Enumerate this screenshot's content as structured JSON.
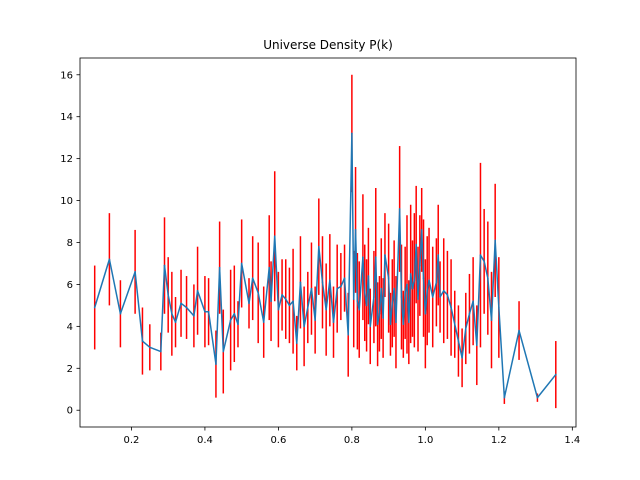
{
  "chart_data": {
    "type": "line",
    "title": "Universe Density P(k)",
    "xlabel": "",
    "ylabel": "",
    "xlim": [
      0.06,
      1.41
    ],
    "ylim": [
      -0.8,
      16.8
    ],
    "xticks": [
      0.2,
      0.4,
      0.6,
      0.8,
      1.0,
      1.2,
      1.4
    ],
    "xtick_labels": [
      "0.2",
      "0.4",
      "0.6",
      "0.8",
      "1.0",
      "1.2",
      "1.4"
    ],
    "yticks": [
      0,
      2,
      4,
      6,
      8,
      10,
      12,
      14,
      16
    ],
    "ytick_labels": [
      "0",
      "2",
      "4",
      "6",
      "8",
      "10",
      "12",
      "14",
      "16"
    ],
    "grid": false,
    "legend": "none",
    "colors": {
      "line": "#1f77b4",
      "errorbar": "#ff0000",
      "frame": "#000000",
      "background": "#ffffff"
    },
    "series": [
      {
        "x": [
          0.1,
          0.14,
          0.17,
          0.21,
          0.23,
          0.25,
          0.28,
          0.29,
          0.3,
          0.31,
          0.32,
          0.335,
          0.35,
          0.37,
          0.38,
          0.4,
          0.41,
          0.43,
          0.44,
          0.45,
          0.47,
          0.48,
          0.49,
          0.5,
          0.52,
          0.53,
          0.545,
          0.56,
          0.575,
          0.58,
          0.59,
          0.6,
          0.61,
          0.62,
          0.63,
          0.64,
          0.65,
          0.66,
          0.67,
          0.68,
          0.69,
          0.7,
          0.71,
          0.72,
          0.73,
          0.74,
          0.75,
          0.76,
          0.77,
          0.78,
          0.79,
          0.8,
          0.805,
          0.81,
          0.815,
          0.82,
          0.83,
          0.835,
          0.84,
          0.845,
          0.85,
          0.86,
          0.865,
          0.87,
          0.875,
          0.88,
          0.885,
          0.89,
          0.9,
          0.905,
          0.91,
          0.915,
          0.92,
          0.93,
          0.935,
          0.94,
          0.945,
          0.95,
          0.955,
          0.96,
          0.965,
          0.97,
          0.975,
          0.98,
          0.985,
          0.99,
          0.995,
          1.0,
          1.005,
          1.01,
          1.02,
          1.03,
          1.035,
          1.04,
          1.05,
          1.06,
          1.07,
          1.08,
          1.09,
          1.1,
          1.11,
          1.12,
          1.13,
          1.14,
          1.15,
          1.16,
          1.17,
          1.18,
          1.19,
          1.2,
          1.215,
          1.255,
          1.305,
          1.355
        ],
        "y": [
          4.9,
          7.2,
          4.6,
          6.6,
          3.3,
          3.0,
          2.8,
          6.9,
          5.5,
          4.6,
          4.2,
          5.1,
          4.9,
          4.5,
          5.7,
          4.7,
          4.7,
          2.2,
          6.8,
          2.8,
          4.3,
          4.6,
          4.1,
          7.0,
          5.1,
          6.3,
          5.6,
          4.2,
          6.8,
          5.2,
          8.3,
          4.8,
          5.5,
          5.3,
          5.0,
          5.2,
          3.2,
          6.1,
          4.0,
          4.9,
          5.8,
          4.3,
          7.8,
          6.1,
          4.8,
          6.2,
          4.2,
          5.8,
          5.9,
          6.3,
          3.6,
          13.2,
          5.3,
          8.6,
          5.2,
          4.8,
          7.3,
          5.6,
          5.0,
          6.4,
          4.0,
          5.4,
          7.3,
          4.1,
          4.6,
          5.8,
          4.4,
          7.4,
          6.3,
          4.1,
          5.1,
          5.8,
          4.2,
          9.6,
          5.4,
          4.1,
          5.6,
          6.0,
          4.2,
          6.5,
          5.8,
          6.2,
          7.9,
          5.3,
          6.9,
          8.6,
          6.3,
          4.6,
          5.7,
          6.2,
          5.4,
          6.1,
          7.4,
          5.4,
          5.7,
          5.5,
          4.9,
          4.1,
          3.3,
          2.5,
          3.9,
          4.6,
          5.2,
          3.1,
          7.4,
          7.1,
          6.3,
          4.3,
          8.1,
          4.9,
          0.6,
          3.8,
          0.6,
          1.7
        ],
        "yerr": [
          2.0,
          2.2,
          1.6,
          2.0,
          1.6,
          1.1,
          0.9,
          2.3,
          1.8,
          2.0,
          1.2,
          1.6,
          1.5,
          1.5,
          2.1,
          1.7,
          1.6,
          1.6,
          2.2,
          2.0,
          2.4,
          2.3,
          1.1,
          2.1,
          1.2,
          2.0,
          2.4,
          1.7,
          2.5,
          1.9,
          3.1,
          1.8,
          1.7,
          1.9,
          1.8,
          2.5,
          1.3,
          2.2,
          1.9,
          1.7,
          2.2,
          1.6,
          2.3,
          2.2,
          2.2,
          2.2,
          1.7,
          2.1,
          1.6,
          1.6,
          2.0,
          2.8,
          2.3,
          3.0,
          2.3,
          2.3,
          3.0,
          2.3,
          2.2,
          2.3,
          1.8,
          2.2,
          3.3,
          2.0,
          1.8,
          2.4,
          1.9,
          2.0,
          2.6,
          1.5,
          2.1,
          2.3,
          2.2,
          3.0,
          2.5,
          1.6,
          2.2,
          3.3,
          2.0,
          3.3,
          2.3,
          3.2,
          2.8,
          2.5,
          2.4,
          2.0,
          2.8,
          2.6,
          2.6,
          2.5,
          2.4,
          2.1,
          2.4,
          1.7,
          2.5,
          2.1,
          2.3,
          1.6,
          1.7,
          1.4,
          1.7,
          1.9,
          2.1,
          1.9,
          4.4,
          2.5,
          2.7,
          2.3,
          2.7,
          2.4,
          0.3,
          1.4,
          0.2,
          1.6
        ]
      }
    ]
  }
}
